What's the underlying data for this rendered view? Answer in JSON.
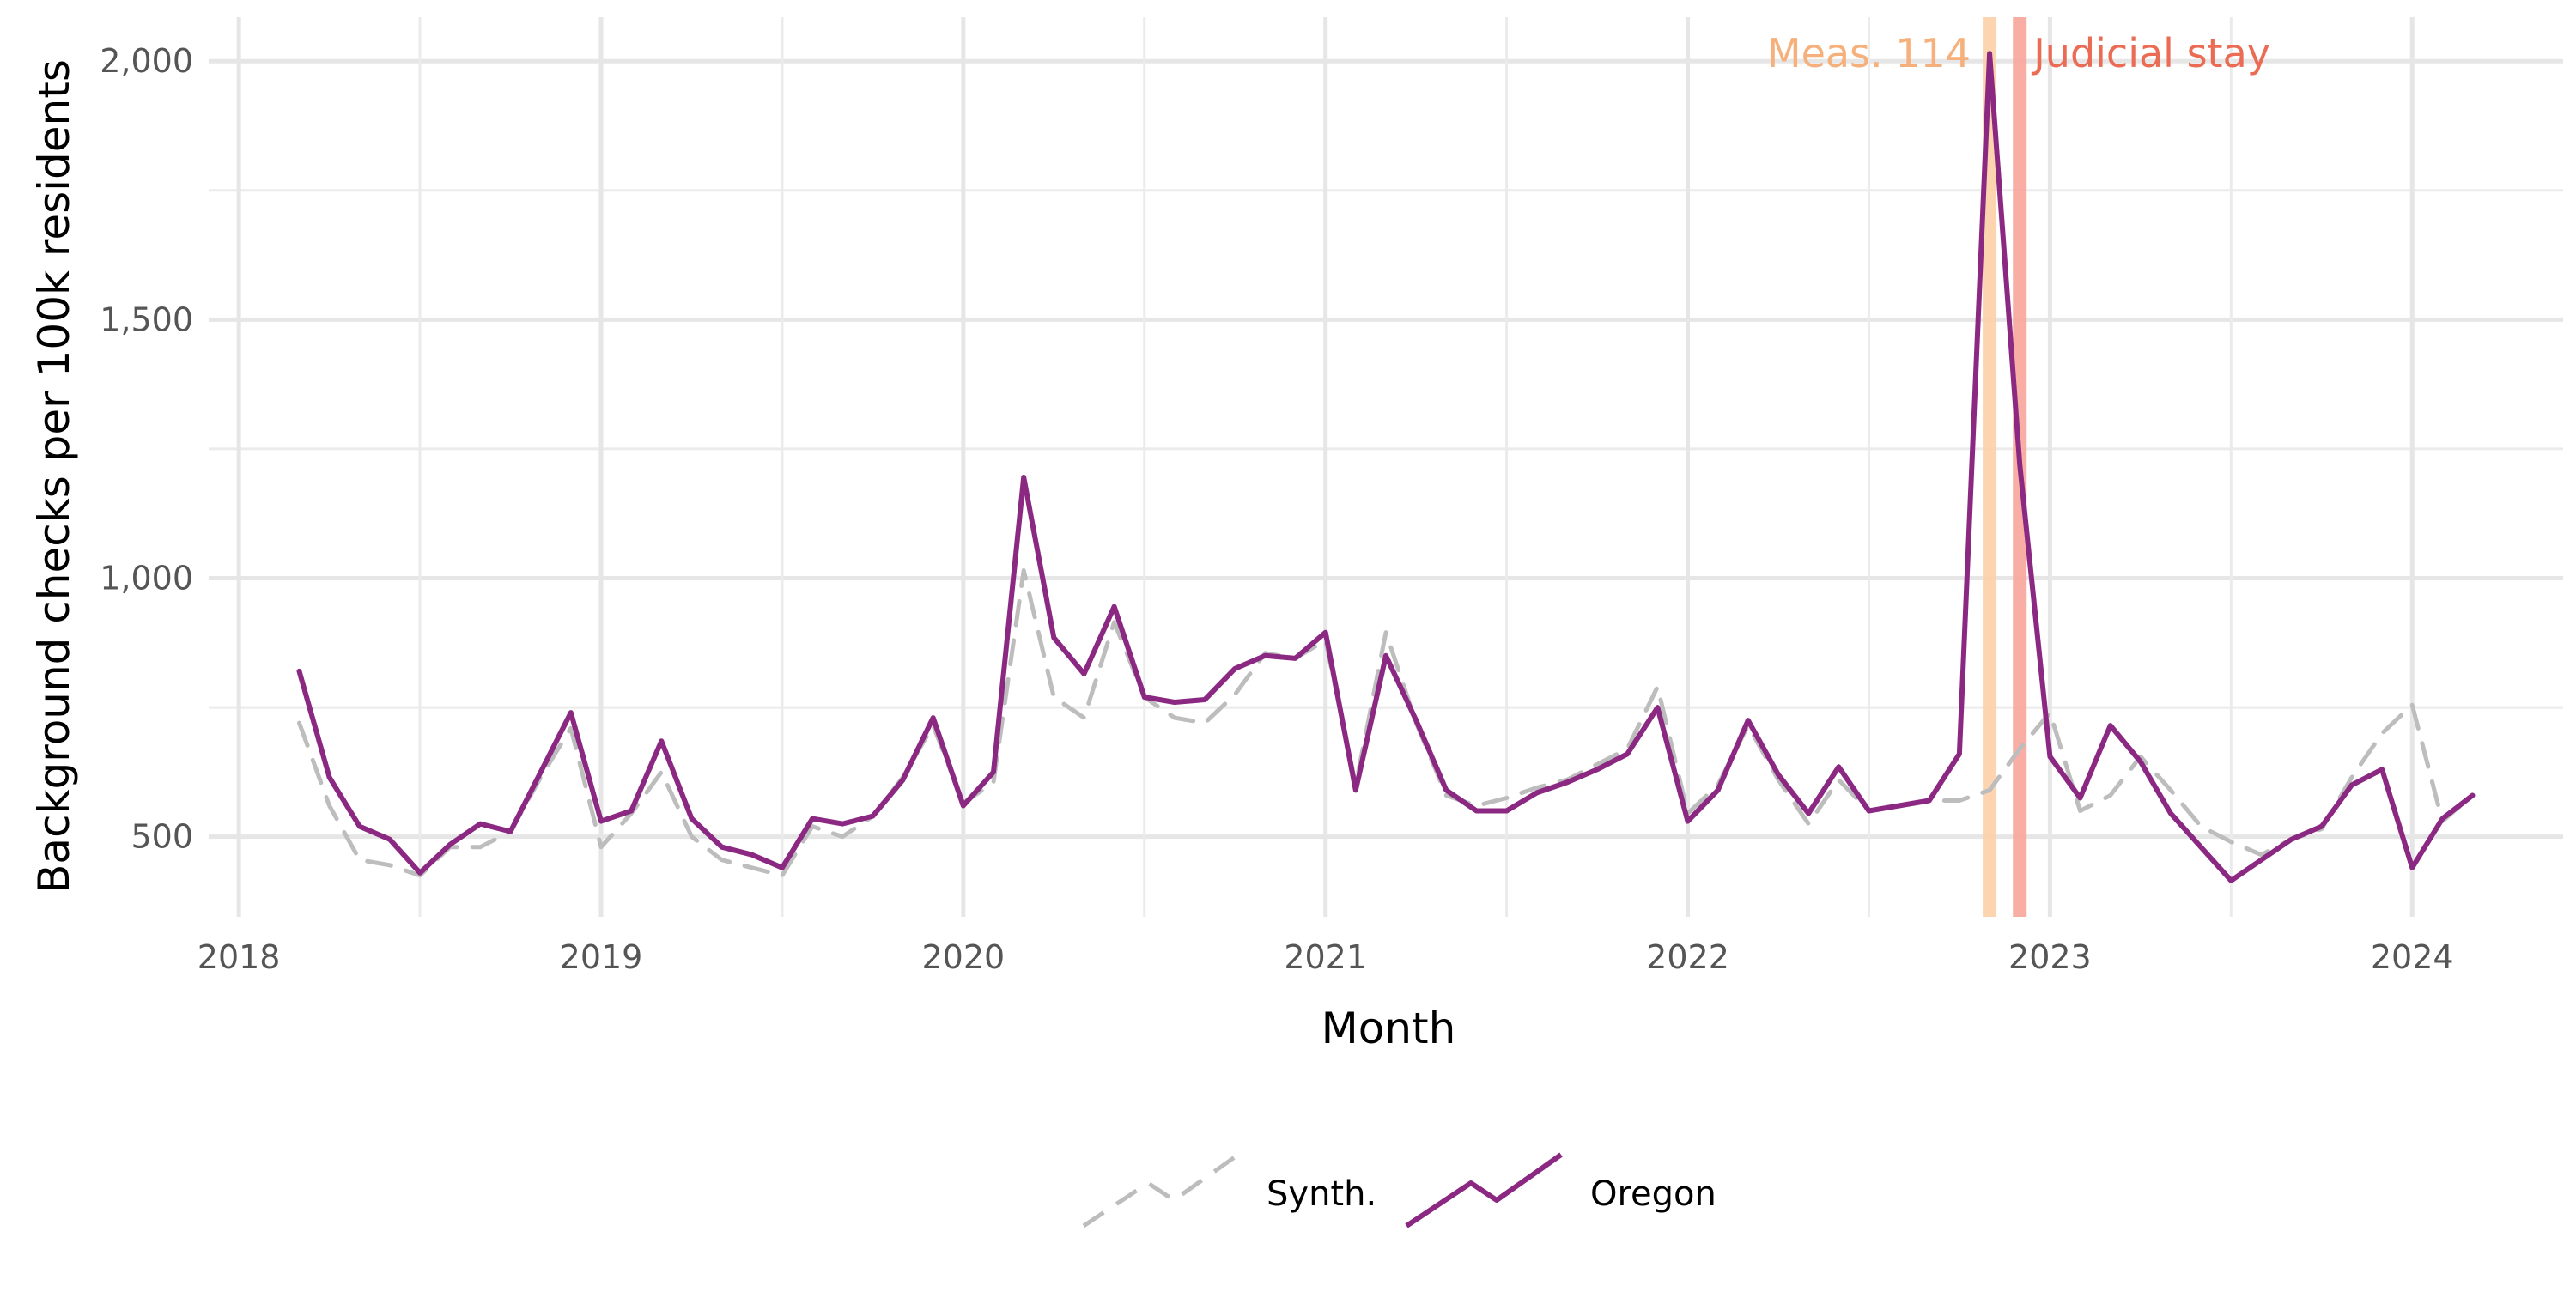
{
  "chart_data": {
    "type": "line",
    "title": "",
    "xlabel": "Month",
    "ylabel": "Background checks per 100k residents",
    "x_tick_labels": [
      "2018",
      "2019",
      "2020",
      "2021",
      "2022",
      "2023",
      "2024"
    ],
    "y_tick_labels": [
      "500",
      "1,000",
      "1,500",
      "2,000"
    ],
    "y_ticks": [
      500,
      1000,
      1500,
      2000
    ],
    "xlim": [
      "2017-12",
      "2024-06"
    ],
    "ylim": [
      345,
      2085
    ],
    "grid": true,
    "legend_position": "bottom",
    "x": [
      "2018-03",
      "2018-04",
      "2018-05",
      "2018-06",
      "2018-07",
      "2018-08",
      "2018-09",
      "2018-10",
      "2018-11",
      "2018-12",
      "2019-01",
      "2019-02",
      "2019-03",
      "2019-04",
      "2019-05",
      "2019-06",
      "2019-07",
      "2019-08",
      "2019-09",
      "2019-10",
      "2019-11",
      "2019-12",
      "2020-01",
      "2020-02",
      "2020-03",
      "2020-04",
      "2020-05",
      "2020-06",
      "2020-07",
      "2020-08",
      "2020-09",
      "2020-10",
      "2020-11",
      "2020-12",
      "2021-01",
      "2021-02",
      "2021-03",
      "2021-04",
      "2021-05",
      "2021-06",
      "2021-07",
      "2021-08",
      "2021-09",
      "2021-10",
      "2021-11",
      "2021-12",
      "2022-01",
      "2022-02",
      "2022-03",
      "2022-04",
      "2022-05",
      "2022-06",
      "2022-07",
      "2022-08",
      "2022-09",
      "2022-10",
      "2022-11",
      "2022-12",
      "2023-01",
      "2023-02",
      "2023-03",
      "2023-04",
      "2023-05",
      "2023-06",
      "2023-07",
      "2023-08",
      "2023-09",
      "2023-10",
      "2023-11",
      "2023-12",
      "2024-01",
      "2024-02",
      "2024-03"
    ],
    "series": [
      {
        "name": "Synth.",
        "color": "#bdbdbd",
        "dash": "dashed",
        "values": [
          720,
          560,
          455,
          445,
          425,
          480,
          480,
          510,
          615,
          710,
          480,
          545,
          625,
          500,
          455,
          440,
          425,
          520,
          500,
          540,
          615,
          715,
          565,
          605,
          1015,
          770,
          730,
          915,
          770,
          730,
          720,
          775,
          855,
          845,
          880,
          600,
          895,
          720,
          580,
          560,
          575,
          595,
          610,
          640,
          670,
          790,
          545,
          600,
          715,
          610,
          525,
          610,
          550,
          560,
          570,
          570,
          590,
          670,
          740,
          550,
          580,
          655,
          590,
          520,
          490,
          465,
          495,
          515,
          615,
          700,
          755,
          530,
          580
        ],
        "values_tail": 630
      },
      {
        "name": "Oregon",
        "color": "#8b2882",
        "dash": "solid",
        "values": [
          820,
          615,
          520,
          495,
          430,
          485,
          525,
          510,
          625,
          740,
          530,
          550,
          685,
          535,
          480,
          465,
          440,
          535,
          525,
          540,
          610,
          730,
          560,
          625,
          1195,
          885,
          815,
          945,
          770,
          760,
          765,
          825,
          850,
          845,
          895,
          590,
          850,
          725,
          590,
          550,
          550,
          585,
          605,
          630,
          660,
          750,
          530,
          590,
          725,
          620,
          545,
          635,
          550,
          560,
          570,
          660,
          2015,
          1220,
          655,
          575,
          715,
          645,
          545,
          480,
          415,
          455,
          495,
          520,
          600,
          630,
          440,
          535,
          580
        ]
      }
    ],
    "annotations": [
      {
        "label": "Meas. 114",
        "x": "2022-11",
        "color": "#fdcfa7",
        "text_color": "#f6b07c"
      },
      {
        "label": "Judicial stay",
        "x": "2022-12",
        "color": "#f7a59b",
        "text_color": "#ea6c55"
      }
    ]
  }
}
